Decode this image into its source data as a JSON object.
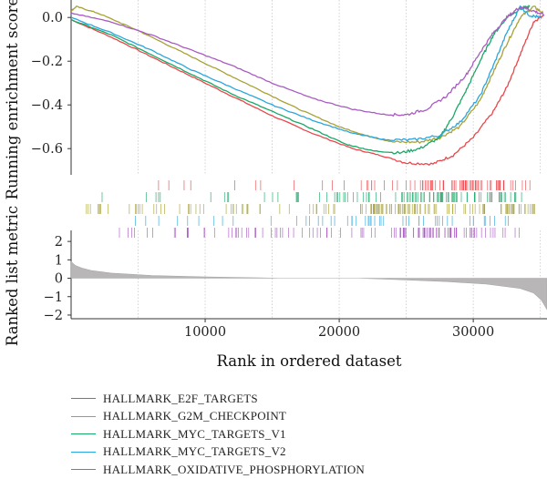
{
  "chart_data": {
    "type": "line",
    "title": "",
    "xlabel": "Rank in ordered dataset",
    "xlim": [
      0,
      35500
    ],
    "x_ticks": [
      10000,
      20000,
      30000
    ],
    "top_panel": {
      "ylabel": "Running enrichment score",
      "ylim": [
        -0.72,
        0.08
      ],
      "y_ticks": [
        0.0,
        -0.2,
        -0.4,
        -0.6
      ],
      "y_tick_labels": [
        "0.0",
        "−0.2",
        "−0.4",
        "−0.6"
      ]
    },
    "bottom_panel": {
      "ylabel": "Ranked list metric",
      "ylim": [
        -2.2,
        2.6
      ],
      "y_ticks": [
        2,
        1,
        0,
        -1,
        -2
      ],
      "y_tick_labels": [
        "2",
        "1",
        "0",
        "−1",
        "−2"
      ],
      "metric_points": [
        {
          "x": 0,
          "y": 0.9
        },
        {
          "x": 300,
          "y": 0.7
        },
        {
          "x": 800,
          "y": 0.55
        },
        {
          "x": 1500,
          "y": 0.42
        },
        {
          "x": 3000,
          "y": 0.28
        },
        {
          "x": 6000,
          "y": 0.15
        },
        {
          "x": 10000,
          "y": 0.07
        },
        {
          "x": 14000,
          "y": 0.02
        },
        {
          "x": 15500,
          "y": 0.0
        },
        {
          "x": 21500,
          "y": 0.0
        },
        {
          "x": 24000,
          "y": -0.06
        },
        {
          "x": 28000,
          "y": -0.18
        },
        {
          "x": 31000,
          "y": -0.32
        },
        {
          "x": 33500,
          "y": -0.55
        },
        {
          "x": 34500,
          "y": -0.8
        },
        {
          "x": 35100,
          "y": -1.2
        },
        {
          "x": 35500,
          "y": -1.7
        }
      ]
    },
    "series": [
      {
        "name": "HALLMARK_E2F_TARGETS",
        "color": "#e8474b",
        "points": [
          [
            0,
            -0.01
          ],
          [
            3000,
            -0.09
          ],
          [
            6000,
            -0.18
          ],
          [
            9000,
            -0.27
          ],
          [
            12000,
            -0.36
          ],
          [
            15000,
            -0.45
          ],
          [
            18000,
            -0.53
          ],
          [
            21000,
            -0.6
          ],
          [
            23000,
            -0.63
          ],
          [
            25000,
            -0.665
          ],
          [
            27000,
            -0.67
          ],
          [
            28500,
            -0.63
          ],
          [
            30000,
            -0.55
          ],
          [
            31500,
            -0.43
          ],
          [
            32500,
            -0.32
          ],
          [
            33500,
            -0.17
          ],
          [
            34500,
            -0.02
          ],
          [
            35200,
            0.01
          ]
        ]
      },
      {
        "name": "HALLMARK_G2M_CHECKPOINT",
        "color": "#a8a235",
        "points": [
          [
            0,
            0.03
          ],
          [
            400,
            0.05
          ],
          [
            2000,
            0.02
          ],
          [
            5000,
            -0.06
          ],
          [
            8000,
            -0.15
          ],
          [
            11000,
            -0.24
          ],
          [
            14000,
            -0.33
          ],
          [
            17000,
            -0.42
          ],
          [
            20000,
            -0.5
          ],
          [
            22000,
            -0.54
          ],
          [
            24000,
            -0.57
          ],
          [
            26000,
            -0.57
          ],
          [
            27500,
            -0.55
          ],
          [
            29000,
            -0.5
          ],
          [
            30500,
            -0.38
          ],
          [
            31500,
            -0.25
          ],
          [
            32500,
            -0.12
          ],
          [
            33500,
            0.0
          ],
          [
            34500,
            0.05
          ],
          [
            35200,
            0.02
          ]
        ]
      },
      {
        "name": "HALLMARK_MYC_TARGETS_V1",
        "color": "#19a868",
        "points": [
          [
            0,
            -0.01
          ],
          [
            3000,
            -0.08
          ],
          [
            6000,
            -0.17
          ],
          [
            9000,
            -0.26
          ],
          [
            12000,
            -0.35
          ],
          [
            15000,
            -0.43
          ],
          [
            18000,
            -0.51
          ],
          [
            20500,
            -0.58
          ],
          [
            22500,
            -0.61
          ],
          [
            24500,
            -0.62
          ],
          [
            26000,
            -0.6
          ],
          [
            27500,
            -0.55
          ],
          [
            28500,
            -0.45
          ],
          [
            29500,
            -0.33
          ],
          [
            30500,
            -0.2
          ],
          [
            31500,
            -0.08
          ],
          [
            32500,
            0.0
          ],
          [
            33500,
            0.04
          ],
          [
            34200,
            0.05
          ]
        ]
      },
      {
        "name": "HALLMARK_MYC_TARGETS_V2",
        "color": "#2aa6de",
        "points": [
          [
            0,
            0.0
          ],
          [
            3000,
            -0.07
          ],
          [
            6000,
            -0.15
          ],
          [
            9000,
            -0.24
          ],
          [
            12000,
            -0.32
          ],
          [
            15000,
            -0.4
          ],
          [
            18000,
            -0.47
          ],
          [
            21000,
            -0.53
          ],
          [
            23500,
            -0.56
          ],
          [
            25500,
            -0.56
          ],
          [
            27500,
            -0.54
          ],
          [
            29000,
            -0.48
          ],
          [
            30500,
            -0.36
          ],
          [
            31500,
            -0.22
          ],
          [
            32500,
            -0.07
          ],
          [
            33500,
            0.05
          ],
          [
            34200,
            0.01
          ],
          [
            35000,
            0.0
          ]
        ]
      },
      {
        "name": "HALLMARK_OXIDATIVE_PHOSPHORYLATION",
        "color": "#a95bc2",
        "points": [
          [
            0,
            0.02
          ],
          [
            3000,
            -0.02
          ],
          [
            6000,
            -0.08
          ],
          [
            9000,
            -0.15
          ],
          [
            12000,
            -0.22
          ],
          [
            15000,
            -0.3
          ],
          [
            18000,
            -0.37
          ],
          [
            21000,
            -0.42
          ],
          [
            23500,
            -0.445
          ],
          [
            25000,
            -0.445
          ],
          [
            26500,
            -0.42
          ],
          [
            28000,
            -0.36
          ],
          [
            29500,
            -0.26
          ],
          [
            30500,
            -0.16
          ],
          [
            31500,
            -0.07
          ],
          [
            32500,
            0.0
          ],
          [
            33500,
            0.05
          ],
          [
            34500,
            0.03
          ],
          [
            35300,
            0.01
          ]
        ]
      }
    ],
    "rug_rows": [
      {
        "series": "HALLMARK_E2F_TARGETS",
        "color": "#e8474b",
        "ranges": [
          [
            5500,
            13000,
            "sparse"
          ],
          [
            13000,
            21000,
            "sparse"
          ],
          [
            21000,
            26000,
            "medium"
          ],
          [
            26000,
            33000,
            "dense"
          ],
          [
            33000,
            34500,
            "medium"
          ]
        ]
      },
      {
        "series": "HALLMARK_MYC_TARGETS_V1",
        "color": "#19a868",
        "ranges": [
          [
            1500,
            14000,
            "sparse"
          ],
          [
            14000,
            22000,
            "medium"
          ],
          [
            22000,
            24500,
            "medium"
          ],
          [
            24500,
            32500,
            "dense"
          ],
          [
            32500,
            34500,
            "medium"
          ]
        ]
      },
      {
        "series": "HALLMARK_G2M_CHECKPOINT",
        "color": "#a8a235",
        "ranges": [
          [
            600,
            12000,
            "medium"
          ],
          [
            12000,
            22000,
            "medium"
          ],
          [
            22000,
            34800,
            "dense"
          ]
        ]
      },
      {
        "series": "HALLMARK_MYC_TARGETS_V2",
        "color": "#2aa6de",
        "ranges": [
          [
            2000,
            16000,
            "sparse"
          ],
          [
            16000,
            25500,
            "medium"
          ],
          [
            25500,
            33000,
            "medium"
          ]
        ]
      },
      {
        "series": "HALLMARK_OXIDATIVE_PHOSPHORYLATION",
        "color": "#a95bc2",
        "ranges": [
          [
            3000,
            14000,
            "medium"
          ],
          [
            14000,
            24000,
            "medium"
          ],
          [
            24000,
            31500,
            "dense"
          ],
          [
            31500,
            33500,
            "medium"
          ]
        ]
      }
    ],
    "legend": {
      "position": "bottom-left",
      "entries": [
        {
          "label": "HALLMARK_E2F_TARGETS",
          "color": "#e8474b"
        },
        {
          "label": "HALLMARK_G2M_CHECKPOINT",
          "color": "#a8a235"
        },
        {
          "label": "HALLMARK_MYC_TARGETS_V1",
          "color": "#19a868"
        },
        {
          "label": "HALLMARK_MYC_TARGETS_V2",
          "color": "#2aa6de"
        },
        {
          "label": "HALLMARK_OXIDATIVE_PHOSPHORYLATION",
          "color": "#a95bc2"
        }
      ]
    },
    "grid": true,
    "grid_style": "vertical dotted"
  }
}
